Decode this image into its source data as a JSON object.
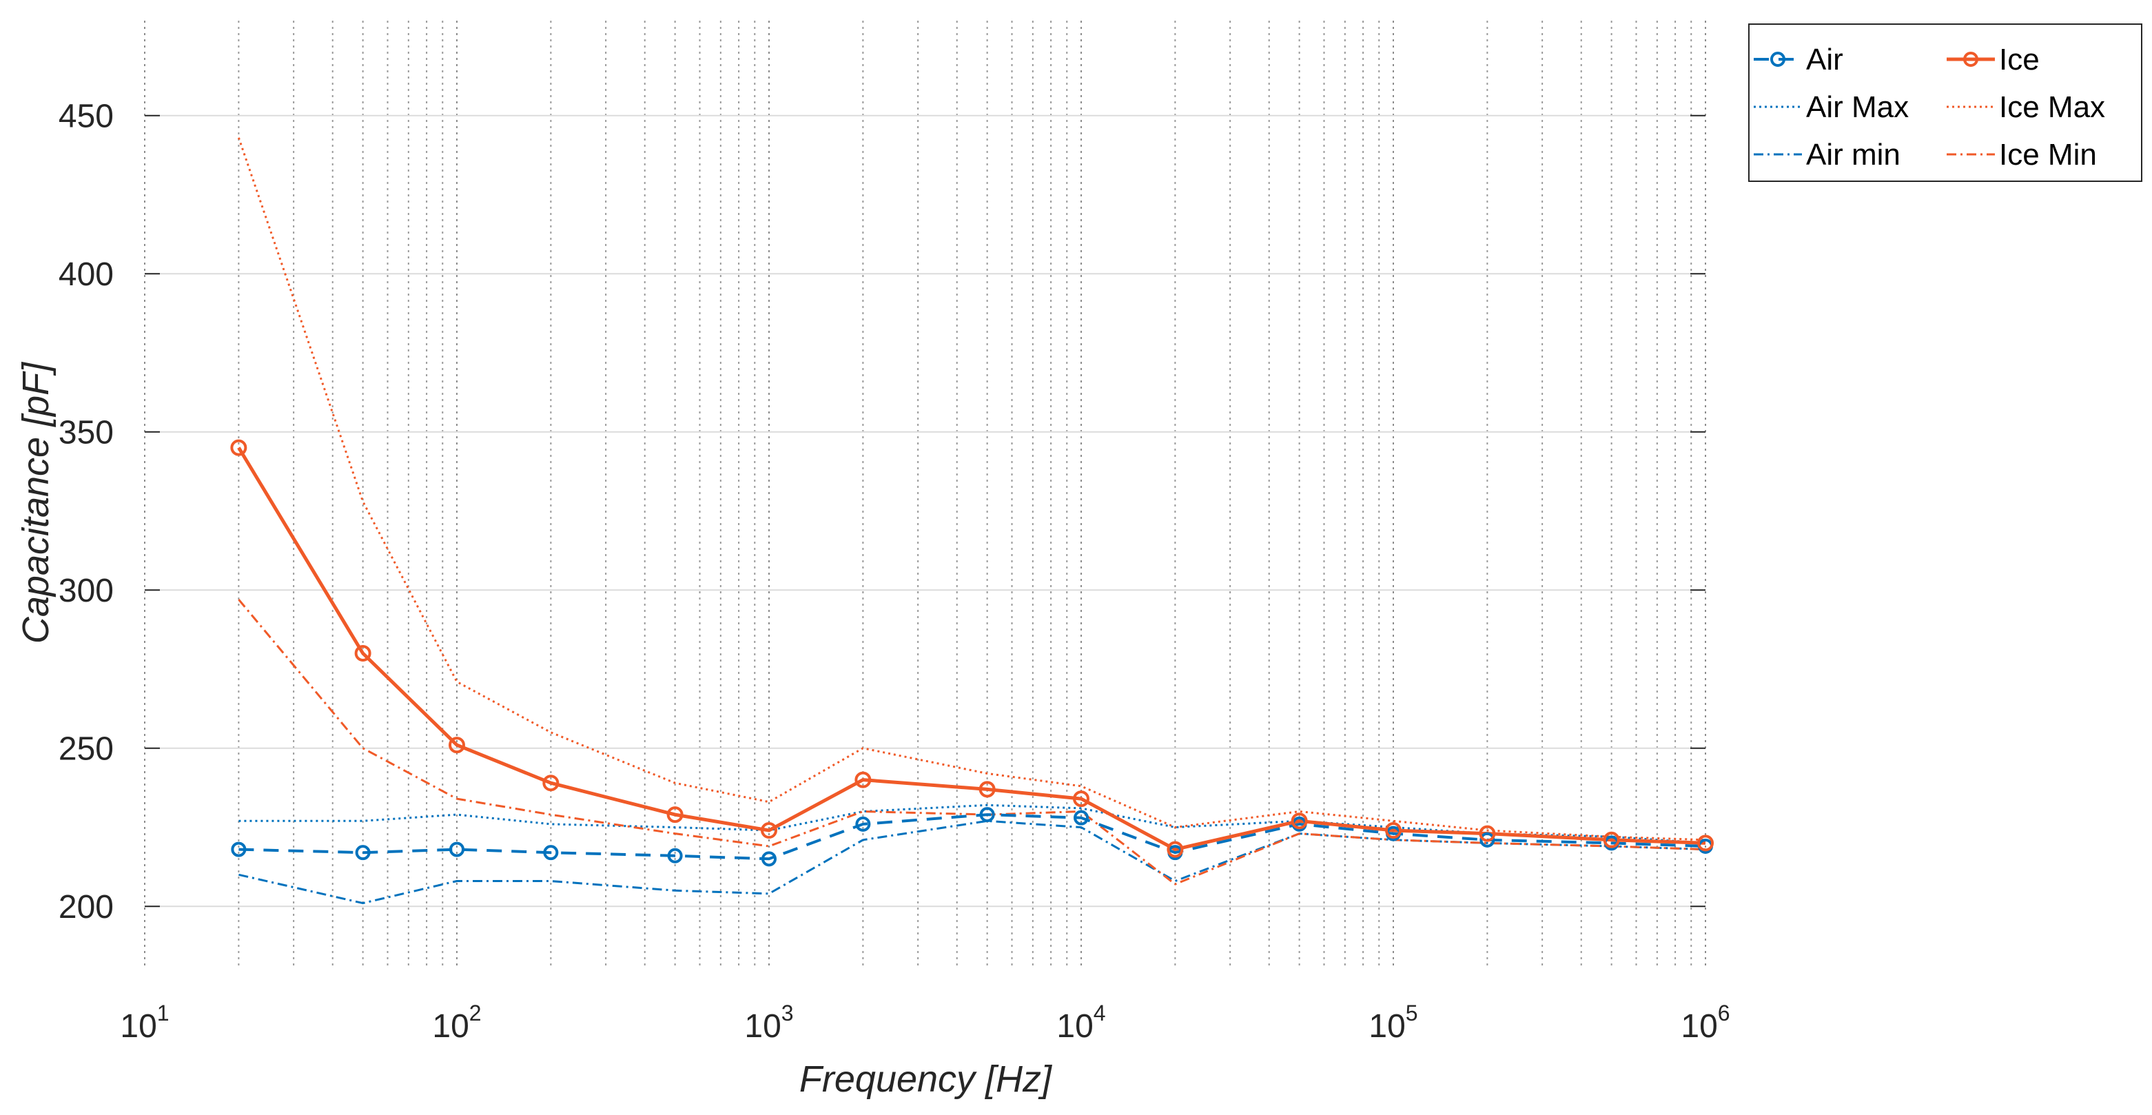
{
  "chart_data": {
    "type": "line",
    "xscale": "log",
    "xlabel": "Frequency [Hz]",
    "ylabel": "Capacitance [pF]",
    "xlim": [
      10,
      1000000
    ],
    "ylim": [
      180,
      480
    ],
    "grid": true,
    "legend_position": "top-right-outside",
    "x_ticks": [
      {
        "value": 10,
        "base": "10",
        "exp": "1"
      },
      {
        "value": 100,
        "base": "10",
        "exp": "2"
      },
      {
        "value": 1000,
        "base": "10",
        "exp": "3"
      },
      {
        "value": 10000,
        "base": "10",
        "exp": "4"
      },
      {
        "value": 100000,
        "base": "10",
        "exp": "5"
      },
      {
        "value": 1000000,
        "base": "10",
        "exp": "6"
      }
    ],
    "y_ticks": [
      {
        "value": 200,
        "label": "200"
      },
      {
        "value": 250,
        "label": "250"
      },
      {
        "value": 300,
        "label": "300"
      },
      {
        "value": 350,
        "label": "350"
      },
      {
        "value": 400,
        "label": "400"
      },
      {
        "value": 450,
        "label": "450"
      }
    ],
    "x": [
      20,
      50,
      100,
      200,
      500,
      1000,
      2000,
      5000,
      10000,
      20000,
      50000,
      100000,
      200000,
      500000,
      1000000
    ],
    "series": [
      {
        "name": "Air",
        "color": "#0072bd",
        "style": "dashed",
        "marker": "circle",
        "values": [
          218,
          217,
          218,
          217,
          216,
          215,
          226,
          229,
          228,
          217,
          226,
          223,
          221,
          220,
          219
        ]
      },
      {
        "name": "Ice",
        "color": "#f05a28",
        "style": "solid",
        "marker": "circle",
        "values": [
          345,
          280,
          251,
          239,
          229,
          224,
          240,
          237,
          234,
          218,
          227,
          224,
          223,
          221,
          220
        ]
      },
      {
        "name": "Air Max",
        "color": "#0072bd",
        "style": "dotted",
        "marker": "none",
        "values": [
          227,
          227,
          229,
          226,
          225,
          224,
          230,
          232,
          231,
          225,
          227,
          225,
          223,
          222,
          220
        ]
      },
      {
        "name": "Ice Max",
        "color": "#f05a28",
        "style": "dotted",
        "marker": "none",
        "values": [
          443,
          328,
          271,
          255,
          239,
          233,
          250,
          242,
          238,
          225,
          230,
          227,
          224,
          222,
          221
        ]
      },
      {
        "name": "Air min",
        "color": "#0072bd",
        "style": "dashdot",
        "marker": "none",
        "values": [
          210,
          201,
          208,
          208,
          205,
          204,
          221,
          227,
          225,
          208,
          223,
          221,
          220,
          219,
          218
        ]
      },
      {
        "name": "Ice Min",
        "color": "#f05a28",
        "style": "dashdot",
        "marker": "none",
        "values": [
          297,
          250,
          234,
          229,
          223,
          219,
          230,
          229,
          230,
          207,
          223,
          221,
          220,
          219,
          218
        ]
      }
    ]
  }
}
